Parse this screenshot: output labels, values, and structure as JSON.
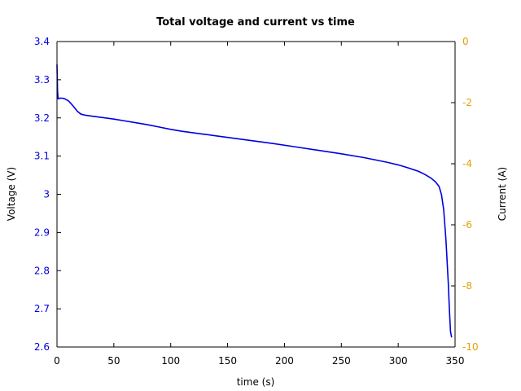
{
  "chart_data": {
    "type": "line",
    "title": "Total voltage and current vs time",
    "xlabel": "time (s)",
    "ylabel": "Voltage (V)",
    "y2label": "Current (A)",
    "xlim": [
      0,
      350
    ],
    "ylim": [
      2.6,
      3.4
    ],
    "y2lim": [
      -10,
      0
    ],
    "xticks": [
      0,
      50,
      100,
      150,
      200,
      250,
      300,
      350
    ],
    "xtick_labels": [
      "0",
      "50",
      "100",
      "150",
      "200",
      "250",
      "300",
      "350"
    ],
    "yticks": [
      2.6,
      2.7,
      2.8,
      2.9,
      3.0,
      3.1,
      3.2,
      3.3,
      3.4
    ],
    "ytick_labels": [
      "2.6",
      "2.7",
      "2.8",
      "2.9",
      "3",
      "3.1",
      "3.2",
      "3.3",
      "3.4"
    ],
    "y2ticks": [
      0,
      -2,
      -4,
      -6,
      -8,
      -10
    ],
    "y2tick_labels": [
      "0",
      "-2",
      "-4",
      "-6",
      "-8",
      "-10"
    ],
    "grid": false,
    "colors": {
      "voltage": "#0000e0",
      "current": "#e6a000",
      "axes": "#000000"
    },
    "series": [
      {
        "axis": "left",
        "x": [
          0,
          0.5,
          1,
          3,
          6,
          10,
          14,
          18,
          21,
          25,
          30,
          40,
          50,
          60,
          70,
          80,
          90,
          100,
          110,
          120,
          130,
          140,
          150,
          170,
          190,
          210,
          230,
          250,
          270,
          290,
          300,
          310,
          318,
          324,
          329,
          333,
          336,
          338,
          340,
          342,
          344,
          345,
          346,
          347
        ],
        "values": [
          3.34,
          3.27,
          3.25,
          3.252,
          3.251,
          3.245,
          3.232,
          3.217,
          3.21,
          3.207,
          3.205,
          3.201,
          3.197,
          3.192,
          3.187,
          3.182,
          3.176,
          3.17,
          3.165,
          3.161,
          3.157,
          3.153,
          3.149,
          3.141,
          3.133,
          3.124,
          3.115,
          3.106,
          3.096,
          3.084,
          3.077,
          3.068,
          3.06,
          3.051,
          3.042,
          3.032,
          3.02,
          3.0,
          2.96,
          2.88,
          2.77,
          2.7,
          2.64,
          2.625
        ]
      }
    ]
  }
}
